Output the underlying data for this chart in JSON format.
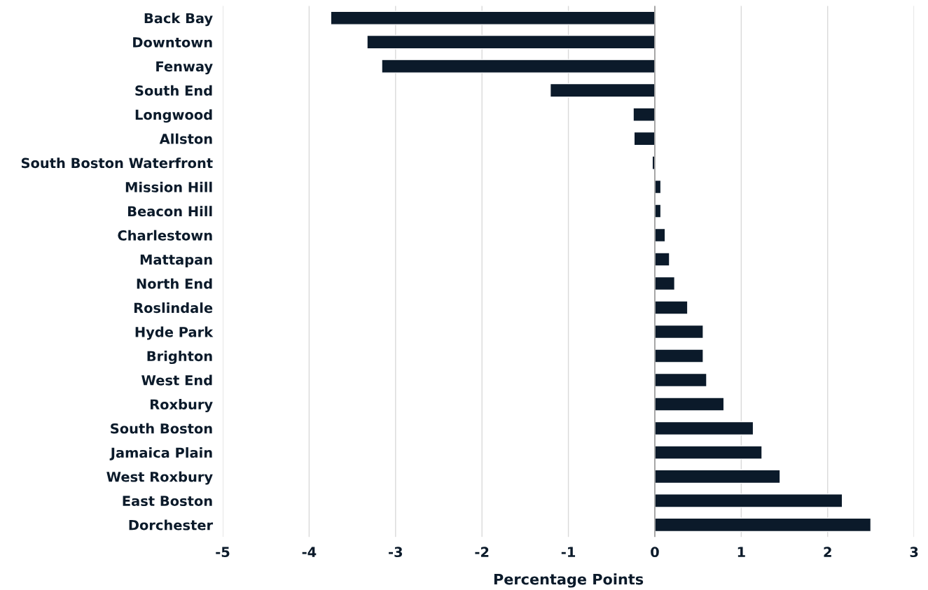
{
  "chart_data": {
    "type": "bar",
    "orientation": "horizontal",
    "xlabel": "Percentage Points",
    "categories": [
      "Back Bay",
      "Downtown",
      "Fenway",
      "South End",
      "Longwood",
      "Allston",
      "South Boston Waterfront",
      "Mission Hill",
      "Beacon Hill",
      "Charlestown",
      "Mattapan",
      "North End",
      "Roslindale",
      "Hyde Park",
      "Brighton",
      "West End",
      "Roxbury",
      "South Boston",
      "Jamaica Plain",
      "West Roxbury",
      "East Boston",
      "Dorchester"
    ],
    "values": [
      -3.75,
      -3.33,
      -3.16,
      -1.21,
      -0.25,
      -0.24,
      -0.03,
      0.07,
      0.07,
      0.12,
      0.17,
      0.23,
      0.38,
      0.56,
      0.56,
      0.6,
      0.8,
      1.14,
      1.24,
      1.45,
      2.17,
      2.5
    ],
    "color": "#0b1a2a",
    "xlim": [
      -5,
      3
    ],
    "xticks": [
      -5,
      -4,
      -3,
      -2,
      -1,
      0,
      1,
      2,
      3
    ],
    "grid": "x",
    "legend": false
  }
}
